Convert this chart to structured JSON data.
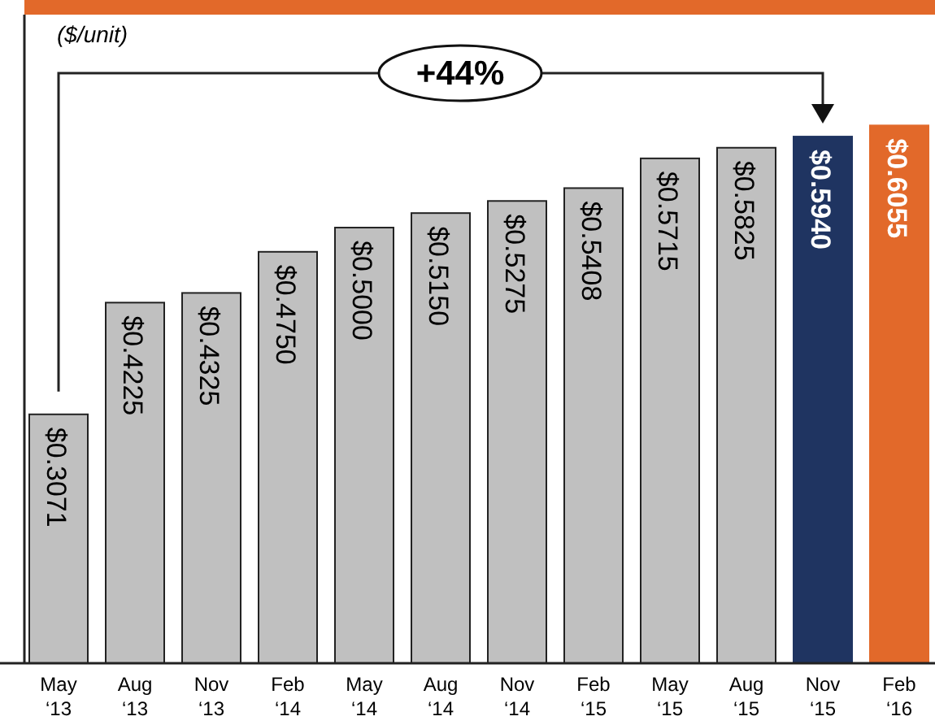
{
  "chart_data": {
    "type": "bar",
    "ylabel": "($/unit)",
    "categories": [
      "May ‘13",
      "Aug ‘13",
      "Nov ‘13",
      "Feb ‘14",
      "May ‘14",
      "Aug ‘14",
      "Nov ‘14",
      "Feb ‘15",
      "May ‘15",
      "Aug ‘15",
      "Nov ‘15",
      "Feb ‘16"
    ],
    "values": [
      0.3071,
      0.4225,
      0.4325,
      0.475,
      0.5,
      0.515,
      0.5275,
      0.5408,
      0.5715,
      0.5825,
      0.594,
      0.6055
    ],
    "colors": [
      "#c0c0c0",
      "#c0c0c0",
      "#c0c0c0",
      "#c0c0c0",
      "#c0c0c0",
      "#c0c0c0",
      "#c0c0c0",
      "#c0c0c0",
      "#c0c0c0",
      "#c0c0c0",
      "#1f3461",
      "#e2692a"
    ],
    "value_labels": [
      "$0.3071",
      "$0.4225",
      "$0.4325",
      "$0.4750",
      "$0.5000",
      "$0.5150",
      "$0.5275",
      "$0.5408",
      "$0.5715",
      "$0.5825",
      "$0.5940",
      "$0.6055"
    ],
    "ylim": [
      0.05,
      0.72
    ],
    "annotations": [
      "+44%"
    ]
  }
}
